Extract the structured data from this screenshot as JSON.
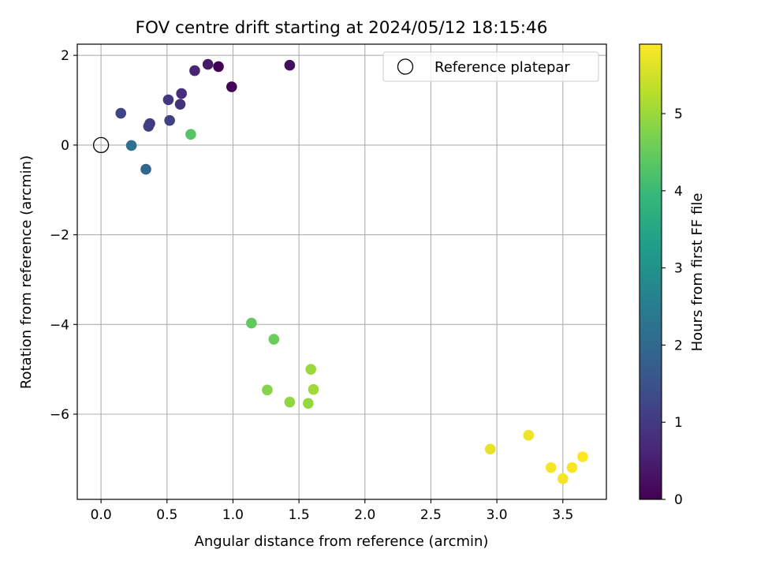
{
  "chart_data": {
    "type": "scatter",
    "title": "FOV centre drift starting at 2024/05/12 18:15:46",
    "xlabel": "Angular distance from reference (arcmin)",
    "ylabel": "Rotation from reference (arcmin)",
    "xlim": [
      -0.18,
      3.83
    ],
    "ylim": [
      -7.9,
      2.25
    ],
    "x_ticks": [
      0.0,
      0.5,
      1.0,
      1.5,
      2.0,
      2.5,
      3.0,
      3.5
    ],
    "x_tick_labels": [
      "0.0",
      "0.5",
      "1.0",
      "1.5",
      "2.0",
      "2.5",
      "3.0",
      "3.5"
    ],
    "y_ticks": [
      2,
      0,
      -2,
      -4,
      -6
    ],
    "y_tick_labels": [
      "2",
      "0",
      "−2",
      "−4",
      "−6"
    ],
    "grid": true,
    "legend": {
      "position": "top-right",
      "entries": [
        {
          "label": "Reference platepar",
          "marker": "open-circle"
        }
      ]
    },
    "reference_point": {
      "x": 0.0,
      "y": 0.0
    },
    "colorbar": {
      "label": "Hours from first FF file",
      "colormap": "viridis",
      "range": [
        0,
        5.9
      ],
      "ticks": [
        0,
        1,
        2,
        3,
        4,
        5
      ],
      "tick_labels": [
        "0",
        "1",
        "2",
        "3",
        "4",
        "5"
      ]
    },
    "points": [
      {
        "x": 0.89,
        "y": 1.75,
        "hours": 0.0
      },
      {
        "x": 0.99,
        "y": 1.3,
        "hours": 0.05
      },
      {
        "x": 1.43,
        "y": 1.78,
        "hours": 0.2
      },
      {
        "x": 0.81,
        "y": 1.8,
        "hours": 0.4
      },
      {
        "x": 0.71,
        "y": 1.66,
        "hours": 0.6
      },
      {
        "x": 0.61,
        "y": 1.15,
        "hours": 0.75
      },
      {
        "x": 0.6,
        "y": 0.91,
        "hours": 0.85
      },
      {
        "x": 0.51,
        "y": 1.01,
        "hours": 0.95
      },
      {
        "x": 0.37,
        "y": 0.48,
        "hours": 1.0
      },
      {
        "x": 0.36,
        "y": 0.42,
        "hours": 1.05
      },
      {
        "x": 0.52,
        "y": 0.55,
        "hours": 1.15
      },
      {
        "x": 0.15,
        "y": 0.71,
        "hours": 1.2
      },
      {
        "x": 0.34,
        "y": -0.54,
        "hours": 1.95
      },
      {
        "x": 0.23,
        "y": -0.01,
        "hours": 2.2
      },
      {
        "x": 0.68,
        "y": 0.24,
        "hours": 4.3
      },
      {
        "x": 1.14,
        "y": -3.97,
        "hours": 4.45
      },
      {
        "x": 1.31,
        "y": -4.33,
        "hours": 4.55
      },
      {
        "x": 1.26,
        "y": -5.46,
        "hours": 4.8
      },
      {
        "x": 1.43,
        "y": -5.73,
        "hours": 4.9
      },
      {
        "x": 1.57,
        "y": -5.76,
        "hours": 4.95
      },
      {
        "x": 1.59,
        "y": -5.0,
        "hours": 5.0
      },
      {
        "x": 1.61,
        "y": -5.45,
        "hours": 5.05
      },
      {
        "x": 2.95,
        "y": -6.78,
        "hours": 5.7
      },
      {
        "x": 3.24,
        "y": -6.47,
        "hours": 5.75
      },
      {
        "x": 3.41,
        "y": -7.19,
        "hours": 5.8
      },
      {
        "x": 3.5,
        "y": -7.44,
        "hours": 5.82
      },
      {
        "x": 3.57,
        "y": -7.19,
        "hours": 5.85
      },
      {
        "x": 3.65,
        "y": -6.95,
        "hours": 5.9
      }
    ]
  }
}
